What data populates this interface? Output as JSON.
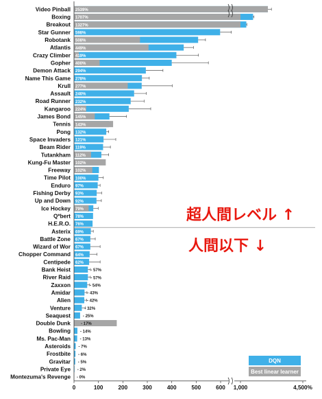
{
  "chart_data": {
    "type": "bar",
    "orientation": "horizontal",
    "xlim": [
      0,
      4500
    ],
    "x_ticks": [
      "0",
      "100",
      "200",
      "300",
      "400",
      "500",
      "600",
      "1,000",
      "4,500%"
    ],
    "x_tick_values": [
      0,
      100,
      200,
      300,
      400,
      500,
      600,
      1000,
      4500
    ],
    "axis_break": "between 600 and 1,000",
    "legend_position": "bottom-right",
    "threshold_after_category": "H.E.R.O.",
    "series": [
      {
        "name": "DQN",
        "color": "#3fb0e8"
      },
      {
        "name": "Best linear learner",
        "color": "#a6a6a6"
      }
    ],
    "categories": [
      {
        "game": "Video Pinball",
        "dqn": 2539,
        "linear": 2539,
        "label": "2539%",
        "err": 200
      },
      {
        "game": "Boxing",
        "dqn": 1707,
        "linear": 1000,
        "label": "1707%",
        "err": 50
      },
      {
        "game": "Breakout",
        "dqn": 1327,
        "linear": 1000,
        "label": "1327%",
        "err": 30
      },
      {
        "game": "Star Gunner",
        "dqn": 598,
        "linear": 0,
        "label": "598%",
        "err": 20
      },
      {
        "game": "Robotank",
        "dqn": 508,
        "linear": 270,
        "label": "508%",
        "err": 30
      },
      {
        "game": "Atlantis",
        "dqn": 449,
        "linear": 305,
        "label": "449%",
        "err": 40
      },
      {
        "game": "Crazy Climber",
        "dqn": 419,
        "linear": 20,
        "label": "419%",
        "err": 90
      },
      {
        "game": "Gopher",
        "dqn": 400,
        "linear": 105,
        "label": "400%",
        "err": 150
      },
      {
        "game": "Demon Attack",
        "dqn": 294,
        "linear": 0,
        "label": "294%",
        "err": 70
      },
      {
        "game": "Name This Game",
        "dqn": 278,
        "linear": 0,
        "label": "278%",
        "err": 30
      },
      {
        "game": "Krull",
        "dqn": 277,
        "linear": 220,
        "label": "277%",
        "err": 125
      },
      {
        "game": "Assault",
        "dqn": 246,
        "linear": 0,
        "label": "246%",
        "err": 50
      },
      {
        "game": "Road Runner",
        "dqn": 232,
        "linear": 0,
        "label": "232%",
        "err": 55
      },
      {
        "game": "Kangaroo",
        "dqn": 224,
        "linear": 50,
        "label": "224%",
        "err": 90
      },
      {
        "game": "James Bond",
        "dqn": 145,
        "linear": 85,
        "label": "145%",
        "err": 70
      },
      {
        "game": "Tennis",
        "dqn": 143,
        "linear": 160,
        "label": "143%",
        "err": 0
      },
      {
        "game": "Pong",
        "dqn": 132,
        "linear": 0,
        "label": "132%",
        "err": 10
      },
      {
        "game": "Space Invaders",
        "dqn": 121,
        "linear": 0,
        "label": "121%",
        "err": 50
      },
      {
        "game": "Beam Rider",
        "dqn": 119,
        "linear": 0,
        "label": "119%",
        "err": 30
      },
      {
        "game": "Tutankham",
        "dqn": 112,
        "linear": 70,
        "label": "112%",
        "err": 30
      },
      {
        "game": "Kung-Fu Master",
        "dqn": 102,
        "linear": 130,
        "label": "102%",
        "err": 0
      },
      {
        "game": "Freeway",
        "dqn": 102,
        "linear": 75,
        "label": "102%",
        "err": 0
      },
      {
        "game": "Time Pilot",
        "dqn": 100,
        "linear": 0,
        "label": "100%",
        "err": 20
      },
      {
        "game": "Enduro",
        "dqn": 97,
        "linear": 0,
        "label": "97%",
        "err": 10
      },
      {
        "game": "Fishing Derby",
        "dqn": 93,
        "linear": 0,
        "label": "93%",
        "err": 20
      },
      {
        "game": "Up and Down",
        "dqn": 92,
        "linear": 0,
        "label": "92%",
        "err": 20
      },
      {
        "game": "Ice Hockey",
        "dqn": 79,
        "linear": 60,
        "label": "79%",
        "err": 20
      },
      {
        "game": "Q*bert",
        "dqn": 78,
        "linear": 0,
        "label": "78%",
        "err": 0
      },
      {
        "game": "H.E.R.O.",
        "dqn": 76,
        "linear": 0,
        "label": "76%",
        "err": 0
      },
      {
        "game": "Asterix",
        "dqn": 69,
        "linear": 0,
        "label": "69%",
        "err": 10
      },
      {
        "game": "Battle Zone",
        "dqn": 67,
        "linear": 0,
        "label": "67%",
        "err": 20
      },
      {
        "game": "Wizard of Wor",
        "dqn": 67,
        "linear": 0,
        "label": "67%",
        "err": 40
      },
      {
        "game": "Chopper Command",
        "dqn": 64,
        "linear": 0,
        "label": "64%",
        "err": 30
      },
      {
        "game": "Centipede",
        "dqn": 62,
        "linear": 0,
        "label": "62%",
        "err": 45
      },
      {
        "game": "Bank Heist",
        "dqn": 57,
        "linear": 0,
        "label": "57%",
        "err": 10
      },
      {
        "game": "River Raid",
        "dqn": 57,
        "linear": 0,
        "label": "57%",
        "err": 10
      },
      {
        "game": "Zaxxon",
        "dqn": 54,
        "linear": 0,
        "label": "54%",
        "err": 10
      },
      {
        "game": "Amidar",
        "dqn": 43,
        "linear": 0,
        "label": "43%",
        "err": 10
      },
      {
        "game": "Alien",
        "dqn": 42,
        "linear": 0,
        "label": "42%",
        "err": 10
      },
      {
        "game": "Venture",
        "dqn": 32,
        "linear": 0,
        "label": "32%",
        "err": 15
      },
      {
        "game": "Seaquest",
        "dqn": 25,
        "linear": 0,
        "label": "25%",
        "err": 0
      },
      {
        "game": "Double Dunk",
        "dqn": 17,
        "linear": 175,
        "label": "17%",
        "err": 0
      },
      {
        "game": "Bowling",
        "dqn": 14,
        "linear": 0,
        "label": "14%",
        "err": 0
      },
      {
        "game": "Ms. Pac-Man",
        "dqn": 13,
        "linear": 0,
        "label": "13%",
        "err": 0
      },
      {
        "game": "Asteroids",
        "dqn": 7,
        "linear": 0,
        "label": "7%",
        "err": 0
      },
      {
        "game": "Frostbite",
        "dqn": 6,
        "linear": 0,
        "label": "6%",
        "err": 0
      },
      {
        "game": "Gravitar",
        "dqn": 5,
        "linear": 0,
        "label": "5%",
        "err": 0
      },
      {
        "game": "Private Eye",
        "dqn": 2,
        "linear": 0,
        "label": "2%",
        "err": 0
      },
      {
        "game": "Montezuma's Revenge",
        "dqn": 0,
        "linear": 0,
        "label": "0%",
        "err": 0
      }
    ]
  },
  "overlay": {
    "above_text": "超人間レベル ↑",
    "below_text": "人間以下 ↓",
    "color": "#e8180f"
  },
  "legend": {
    "dqn_label": "DQN",
    "linear_label": "Best linear learner"
  }
}
